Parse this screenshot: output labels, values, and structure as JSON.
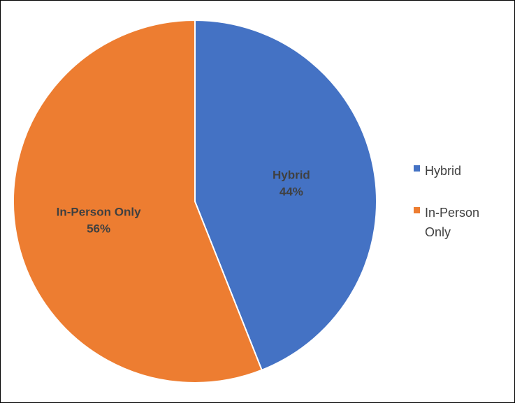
{
  "chart_data": {
    "type": "pie",
    "title": "",
    "start_angle_deg": 0,
    "direction": "clockwise",
    "legend_position": "right",
    "slices": [
      {
        "name": "Hybrid",
        "value": 44,
        "label": "Hybrid",
        "value_label": "44%",
        "color": "#4472C4"
      },
      {
        "name": "In-Person Only",
        "value": 56,
        "label": "In-Person Only",
        "value_label": "56%",
        "color": "#ED7D31"
      }
    ],
    "legend": [
      {
        "lines": [
          "Hybrid"
        ],
        "color": "#4472C4"
      },
      {
        "lines": [
          "In-Person",
          "Only"
        ],
        "color": "#ED7D31"
      }
    ],
    "slice_border_color": "#FFFFFF"
  }
}
